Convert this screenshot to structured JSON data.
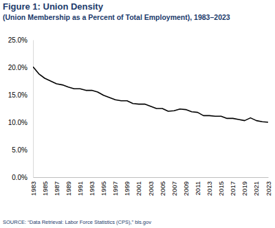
{
  "chart_data": {
    "type": "line",
    "title": "Figure 1: Union Density",
    "subtitle": "(Union Membership as a Percent of Total Employment), 1983–2023",
    "source": "SOURCE: “Data Retrieval: Labor Force Statistics (CPS),” bls.gov",
    "x": [
      1983,
      1984,
      1985,
      1986,
      1987,
      1988,
      1989,
      1990,
      1991,
      1992,
      1993,
      1994,
      1995,
      1996,
      1997,
      1998,
      1999,
      2000,
      2001,
      2002,
      2003,
      2004,
      2005,
      2006,
      2007,
      2008,
      2009,
      2010,
      2011,
      2012,
      2013,
      2014,
      2015,
      2016,
      2017,
      2018,
      2019,
      2020,
      2021,
      2022,
      2023
    ],
    "values": [
      20.1,
      18.8,
      18.0,
      17.5,
      17.0,
      16.8,
      16.4,
      16.1,
      16.1,
      15.8,
      15.8,
      15.5,
      14.9,
      14.5,
      14.1,
      13.9,
      13.9,
      13.4,
      13.3,
      13.3,
      12.9,
      12.5,
      12.5,
      12.0,
      12.1,
      12.4,
      12.3,
      11.9,
      11.8,
      11.2,
      11.2,
      11.1,
      11.1,
      10.7,
      10.7,
      10.5,
      10.3,
      10.8,
      10.3,
      10.1,
      10.0
    ],
    "color": "#000000",
    "xlim": [
      1983,
      2023
    ],
    "xticks": [
      1983,
      1985,
      1987,
      1989,
      1991,
      1993,
      1995,
      1997,
      1999,
      2001,
      2003,
      2005,
      2007,
      2009,
      2011,
      2013,
      2015,
      2017,
      2019,
      2021,
      2023
    ],
    "ylim": [
      0,
      25
    ],
    "yticks": [
      {
        "value": 0,
        "label": "0.0%"
      },
      {
        "value": 5,
        "label": "5.0%"
      },
      {
        "value": 10,
        "label": "10.0%"
      },
      {
        "value": 15,
        "label": "15.0%"
      },
      {
        "value": 20,
        "label": "20.0%"
      },
      {
        "value": 25,
        "label": "25.0%"
      }
    ],
    "grid": false
  }
}
